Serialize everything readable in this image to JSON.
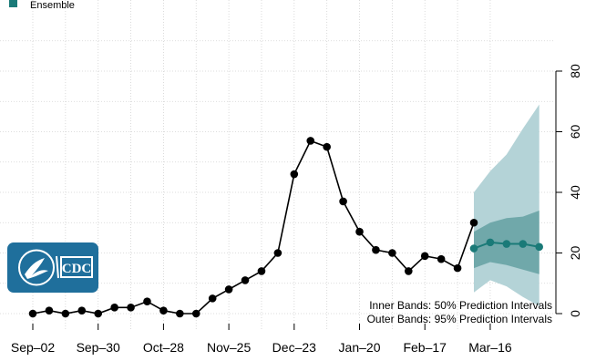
{
  "legend": {
    "label": "Ensemble",
    "color": "#1a7a78"
  },
  "notes": {
    "inner": "Inner Bands: 50% Prediction Intervals",
    "outer": "Outer Bands: 95% Prediction Intervals"
  },
  "logo": {
    "text": "CDC",
    "icon": "hhs-eagle-and-cdc-logo",
    "color": "#1f6f9c"
  },
  "chart_data": {
    "type": "line",
    "x_ticks": [
      "Sep–02",
      "Sep–30",
      "Oct–28",
      "Nov–25",
      "Dec–23",
      "Jan–20",
      "Feb–17",
      "Mar–16"
    ],
    "y_ticks": [
      "0",
      "20",
      "40",
      "60",
      "80"
    ],
    "ylim": [
      -2,
      85
    ],
    "grid": true,
    "legend_position": "top-left",
    "observed": {
      "color": "#000000",
      "x": [
        "2018-09-02",
        "2018-09-09",
        "2018-09-16",
        "2018-09-23",
        "2018-09-30",
        "2018-10-07",
        "2018-10-14",
        "2018-10-21",
        "2018-10-28",
        "2018-11-04",
        "2018-11-11",
        "2018-11-18",
        "2018-11-25",
        "2018-12-02",
        "2018-12-09",
        "2018-12-16",
        "2018-12-23",
        "2018-12-30",
        "2019-01-06",
        "2019-01-13",
        "2019-01-20",
        "2019-01-27",
        "2019-02-03",
        "2019-02-10",
        "2019-02-17",
        "2019-02-24",
        "2019-03-03"
      ],
      "values": [
        0,
        1,
        0,
        1,
        0,
        2,
        2,
        4,
        1,
        0,
        0,
        5,
        8,
        11,
        14,
        20,
        46,
        57,
        55,
        37,
        27,
        21,
        20,
        14,
        19,
        18,
        15
      ]
    },
    "observed_last": {
      "x": "2019-03-10",
      "value": 30
    },
    "forecast": {
      "name": "Ensemble",
      "color": "#1a7a78",
      "x": [
        "2019-03-10",
        "2019-03-17",
        "2019-03-24",
        "2019-03-31",
        "2019-04-07"
      ],
      "median": [
        21.5,
        23.5,
        23,
        23,
        22
      ],
      "pi50_lower": [
        15,
        17,
        16,
        14.5,
        13
      ],
      "pi50_upper": [
        27,
        30,
        31.5,
        32,
        34
      ],
      "pi95_lower": [
        7,
        11,
        9,
        5.5,
        2.5
      ],
      "pi95_upper": [
        40,
        47,
        52.5,
        61,
        69
      ],
      "inner_band_color": "#70a8aa",
      "outer_band_color": "#b4d3d7"
    }
  }
}
